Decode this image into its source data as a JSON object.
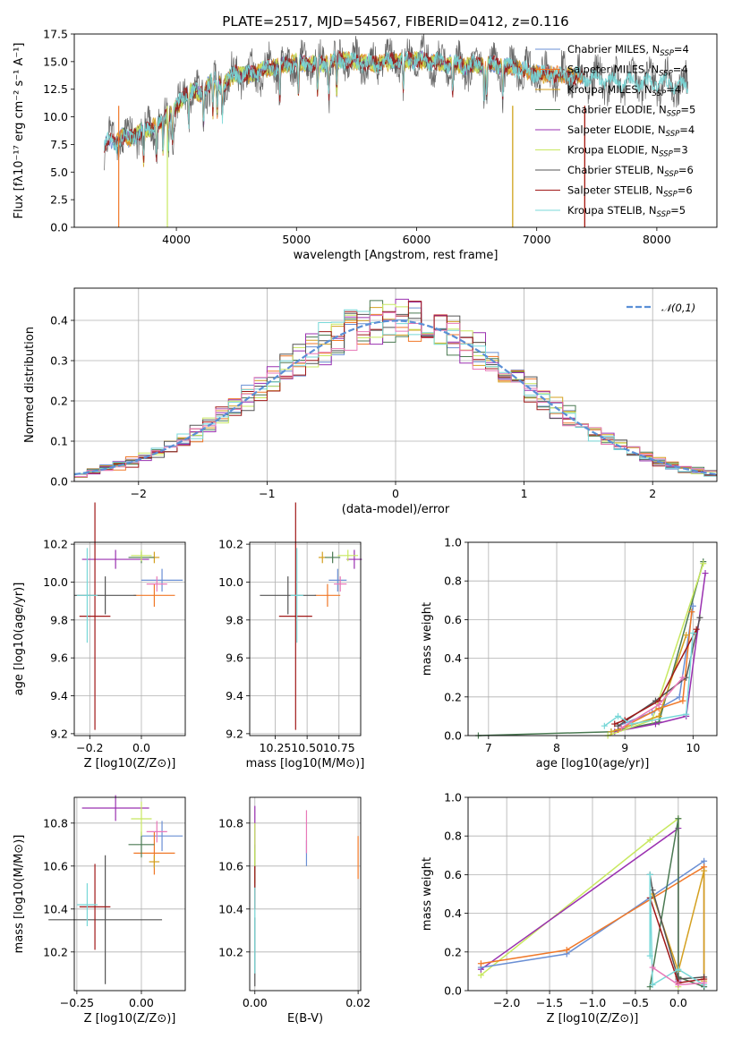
{
  "figure": {
    "title": "PLATE=2517, MJD=54567, FIBERID=0412, z=0.116"
  },
  "colors": {
    "Chabrier MILES": "#6a8fd4",
    "Salpeter MILES": "#f07828",
    "Kroupa MILES": "#d4a020",
    "Chabrier ELODIE": "#4a7a52",
    "Salpeter ELODIE": "#9a30b0",
    "Kroupa ELODIE": "#c8e860",
    "Chabrier STELIB": "#555555",
    "Salpeter STELIB": "#a01818",
    "Kroupa STELIB": "#78d8d8",
    "pink": "#e878b8",
    "gaussian": "#5a8fd6"
  },
  "chart_data": [
    {
      "id": "spectrum",
      "type": "line",
      "title": "PLATE=2517, MJD=54567, FIBERID=0412, z=0.116",
      "xlabel": "wavelength [Angstrom, rest frame]",
      "ylabel": "Flux [fλ10⁻¹⁷ erg cm⁻² s⁻¹ A⁻¹]",
      "xlim": [
        3150,
        8500
      ],
      "ylim": [
        0,
        17.5
      ],
      "xticks": [
        4000,
        5000,
        6000,
        7000,
        8000
      ],
      "yticks": [
        0.0,
        2.5,
        5.0,
        7.5,
        10.0,
        12.5,
        15.0,
        17.5
      ],
      "legend_position": "right",
      "legend": [
        "Chabrier MILES, N_SSP=4",
        "Salpeter MILES, N_SSP=4",
        "Kroupa MILES, N_SSP=4",
        "Chabrier ELODIE, N_SSP=5",
        "Salpeter ELODIE, N_SSP=4",
        "Kroupa ELODIE, N_SSP=3",
        "Chabrier STELIB, N_SSP=6",
        "Salpeter STELIB, N_SSP=6",
        "Kroupa STELIB, N_SSP=5"
      ],
      "legend_parts": [
        {
          "base": "Chabrier MILES, N",
          "sub": "SSP",
          "tail": "=4"
        },
        {
          "base": "Salpeter MILES, N",
          "sub": "SSP",
          "tail": "=4"
        },
        {
          "base": "Kroupa MILES, N",
          "sub": "SSP",
          "tail": "=4"
        },
        {
          "base": "Chabrier ELODIE, N",
          "sub": "SSP",
          "tail": "=5"
        },
        {
          "base": "Salpeter ELODIE, N",
          "sub": "SSP",
          "tail": "=4"
        },
        {
          "base": "Kroupa ELODIE, N",
          "sub": "SSP",
          "tail": "=3"
        },
        {
          "base": "Chabrier STELIB, N",
          "sub": "SSP",
          "tail": "=6"
        },
        {
          "base": "Salpeter STELIB, N",
          "sub": "SSP",
          "tail": "=6"
        },
        {
          "base": "Kroupa STELIB, N",
          "sub": "SSP",
          "tail": "=5"
        }
      ],
      "legend_colors": [
        "#6a8fd4",
        "#f07828",
        "#d4a020",
        "#4a7a52",
        "#9a30b0",
        "#c8e860",
        "#555555",
        "#a01818",
        "#78d8d8"
      ],
      "anchors": {
        "x": [
          3400,
          3450,
          3500,
          3550,
          3600,
          3700,
          3800,
          3900,
          4000,
          4100,
          4200,
          4300,
          4400,
          4500,
          4600,
          4800,
          5000,
          5200,
          5400,
          5600,
          5800,
          6000,
          6200,
          6400,
          6600,
          6800,
          7000,
          7200,
          7400,
          7600,
          7800,
          8000,
          8200,
          8260
        ],
        "y": [
          7.6,
          7.9,
          7.6,
          8.3,
          8.0,
          8.7,
          9.0,
          9.8,
          10.8,
          12.4,
          12.0,
          13.3,
          13.0,
          14.0,
          13.8,
          14.5,
          14.9,
          14.8,
          15.2,
          14.8,
          15.0,
          15.2,
          14.9,
          14.6,
          14.8,
          14.5,
          13.9,
          13.8,
          13.6,
          13.3,
          13.2,
          13.0,
          12.9,
          12.8
        ]
      },
      "absorption_lines": [
        3727,
        3835,
        3889,
        3934,
        3969,
        4102,
        4226,
        4304,
        4340,
        4383,
        4861,
        5015,
        5175,
        5270,
        5335,
        5890,
        6300,
        6563,
        6583,
        6717
      ]
    },
    {
      "id": "residuals",
      "type": "bar",
      "xlabel": "(data-model)/error",
      "ylabel": "Normed distribution",
      "xlim": [
        -2.5,
        2.5
      ],
      "ylim": [
        0,
        0.48
      ],
      "xticks": [
        -2,
        -1,
        0,
        1,
        2
      ],
      "yticks": [
        0.0,
        0.1,
        0.2,
        0.3,
        0.4
      ],
      "legend_position": "top-right",
      "legend": [
        "𝒩(0,1)"
      ],
      "gaussian": {
        "mean": 0,
        "sigma": 1
      },
      "bins": {
        "start": -2.5,
        "width": 0.1,
        "count": 50
      }
    },
    {
      "id": "age_vs_Z",
      "type": "scatter",
      "xlabel": "Z [log10(Z/Z⊙)]",
      "ylabel": "age  [log10(age/yr)]",
      "xlim": [
        -0.26,
        0.17
      ],
      "ylim": [
        9.19,
        10.21
      ],
      "xticks": [
        -0.2,
        0.0
      ],
      "yticks": [
        9.2,
        9.4,
        9.6,
        9.8,
        10.0,
        10.2
      ],
      "points": [
        {
          "model": "Chabrier MILES",
          "x": 0.08,
          "y": 10.01,
          "xerr": 0.08,
          "yerr": 0.06
        },
        {
          "model": "Salpeter MILES",
          "x": 0.05,
          "y": 9.93,
          "xerr": 0.08,
          "yerr": 0.06
        },
        {
          "model": "Kroupa MILES",
          "x": 0.05,
          "y": 10.13,
          "xerr": 0.02,
          "yerr": 0.03
        },
        {
          "model": "Chabrier ELODIE",
          "x": 0.0,
          "y": 10.13,
          "xerr": 0.05,
          "yerr": 0.03
        },
        {
          "model": "Salpeter ELODIE",
          "x": -0.1,
          "y": 10.12,
          "xerr": 0.13,
          "yerr": 0.05
        },
        {
          "model": "Kroupa ELODIE",
          "x": 0.0,
          "y": 10.14,
          "xerr": 0.04,
          "yerr": 0.03
        },
        {
          "model": "Chabrier STELIB",
          "x": -0.14,
          "y": 9.93,
          "xerr": 0.12,
          "yerr": 0.1
        },
        {
          "model": "Salpeter STELIB",
          "x": -0.18,
          "y": 9.82,
          "xerr": 0.06,
          "yerr": 0.6
        },
        {
          "model": "Kroupa STELIB",
          "x": -0.21,
          "y": 9.93,
          "xerr": 0.04,
          "yerr": 0.25
        },
        {
          "model": "pink",
          "x": 0.06,
          "y": 9.99,
          "xerr": 0.04,
          "yerr": 0.04
        }
      ]
    },
    {
      "id": "age_vs_mass",
      "type": "scatter",
      "xlabel": "mass [log10(M/M⊙)]",
      "ylabel": "",
      "xlim": [
        10.05,
        10.92
      ],
      "ylim": [
        9.19,
        10.21
      ],
      "xticks": [
        10.25,
        10.5,
        10.75
      ],
      "yticks": [
        9.2,
        9.4,
        9.6,
        9.8,
        10.0,
        10.2
      ],
      "points": [
        {
          "model": "Chabrier MILES",
          "x": 10.74,
          "y": 10.01,
          "xerr": 0.07,
          "yerr": 0.06
        },
        {
          "model": "Salpeter MILES",
          "x": 10.66,
          "y": 9.93,
          "xerr": 0.1,
          "yerr": 0.06
        },
        {
          "model": "Kroupa MILES",
          "x": 10.62,
          "y": 10.13,
          "xerr": 0.03,
          "yerr": 0.03
        },
        {
          "model": "Chabrier ELODIE",
          "x": 10.7,
          "y": 10.13,
          "xerr": 0.06,
          "yerr": 0.03
        },
        {
          "model": "Salpeter ELODIE",
          "x": 10.87,
          "y": 10.12,
          "xerr": 0.06,
          "yerr": 0.05
        },
        {
          "model": "Kroupa ELODIE",
          "x": 10.82,
          "y": 10.14,
          "xerr": 0.08,
          "yerr": 0.03
        },
        {
          "model": "Chabrier STELIB",
          "x": 10.35,
          "y": 9.93,
          "xerr": 0.22,
          "yerr": 0.1
        },
        {
          "model": "Salpeter STELIB",
          "x": 10.41,
          "y": 9.82,
          "xerr": 0.13,
          "yerr": 0.6
        },
        {
          "model": "Kroupa STELIB",
          "x": 10.42,
          "y": 9.93,
          "xerr": 0.05,
          "yerr": 0.25
        },
        {
          "model": "pink",
          "x": 10.76,
          "y": 9.99,
          "xerr": 0.05,
          "yerr": 0.04
        }
      ]
    },
    {
      "id": "mass_weight_vs_age",
      "type": "line",
      "xlabel": "age  [log10(age/yr)]",
      "ylabel": "mass weight",
      "xlim": [
        6.7,
        10.35
      ],
      "ylim": [
        0,
        1.0
      ],
      "xticks": [
        7,
        8,
        9,
        10
      ],
      "yticks": [
        0.0,
        0.2,
        0.4,
        0.6,
        0.8,
        1.0
      ],
      "series": [
        {
          "model": "Chabrier ELODIE",
          "x": [
            6.85,
            8.8,
            9.5,
            10.15
          ],
          "y": [
            0.0,
            0.02,
            0.07,
            0.9
          ]
        },
        {
          "model": "Salpeter ELODIE",
          "x": [
            8.85,
            9.45,
            9.9,
            10.18
          ],
          "y": [
            0.02,
            0.06,
            0.1,
            0.84
          ]
        },
        {
          "model": "Kroupa ELODIE",
          "x": [
            8.75,
            9.4,
            10.15
          ],
          "y": [
            0.0,
            0.08,
            0.89
          ]
        },
        {
          "model": "Chabrier MILES",
          "x": [
            8.9,
            9.4,
            9.8,
            10.0
          ],
          "y": [
            0.05,
            0.12,
            0.2,
            0.67
          ]
        },
        {
          "model": "Salpeter MILES",
          "x": [
            8.9,
            9.5,
            9.85,
            9.98
          ],
          "y": [
            0.03,
            0.14,
            0.18,
            0.64
          ]
        },
        {
          "model": "Kroupa MILES",
          "x": [
            8.8,
            9.5,
            9.9
          ],
          "y": [
            0.02,
            0.1,
            0.52
          ]
        },
        {
          "model": "Chabrier STELIB",
          "x": [
            8.9,
            9.45,
            9.9,
            10.1
          ],
          "y": [
            0.05,
            0.18,
            0.3,
            0.61
          ]
        },
        {
          "model": "Salpeter STELIB",
          "x": [
            8.85,
            9.0,
            9.5,
            10.05
          ],
          "y": [
            0.06,
            0.08,
            0.18,
            0.55
          ]
        },
        {
          "model": "Kroupa STELIB",
          "x": [
            8.7,
            8.9,
            9.1,
            9.9,
            10.0
          ],
          "y": [
            0.05,
            0.1,
            0.06,
            0.11,
            0.53
          ]
        },
        {
          "model": "pink",
          "x": [
            8.95,
            9.5,
            9.85
          ],
          "y": [
            0.04,
            0.16,
            0.3
          ]
        }
      ]
    },
    {
      "id": "mass_vs_Z",
      "type": "scatter",
      "xlabel": "Z [log10(Z/Z⊙)]",
      "ylabel": "mass [log10(M/M⊙)]",
      "xlim": [
        -0.26,
        0.17
      ],
      "ylim": [
        10.02,
        10.92
      ],
      "xticks": [
        -0.25,
        0.0
      ],
      "yticks": [
        10.2,
        10.4,
        10.6,
        10.8
      ],
      "points": [
        {
          "model": "Chabrier MILES",
          "x": 0.08,
          "y": 10.74,
          "xerr": 0.08,
          "yerr": 0.07
        },
        {
          "model": "Salpeter MILES",
          "x": 0.05,
          "y": 10.66,
          "xerr": 0.08,
          "yerr": 0.1
        },
        {
          "model": "Kroupa MILES",
          "x": 0.05,
          "y": 10.62,
          "xerr": 0.02,
          "yerr": 0.03
        },
        {
          "model": "Chabrier ELODIE",
          "x": 0.0,
          "y": 10.7,
          "xerr": 0.05,
          "yerr": 0.06
        },
        {
          "model": "Salpeter ELODIE",
          "x": -0.1,
          "y": 10.87,
          "xerr": 0.13,
          "yerr": 0.06
        },
        {
          "model": "Kroupa ELODIE",
          "x": 0.0,
          "y": 10.82,
          "xerr": 0.04,
          "yerr": 0.08
        },
        {
          "model": "Chabrier STELIB",
          "x": -0.14,
          "y": 10.35,
          "xerr": 0.22,
          "yerr": 0.3
        },
        {
          "model": "Salpeter STELIB",
          "x": -0.18,
          "y": 10.41,
          "xerr": 0.06,
          "yerr": 0.2
        },
        {
          "model": "Kroupa STELIB",
          "x": -0.21,
          "y": 10.42,
          "xerr": 0.04,
          "yerr": 0.1
        },
        {
          "model": "pink",
          "x": 0.06,
          "y": 10.76,
          "xerr": 0.04,
          "yerr": 0.05
        }
      ]
    },
    {
      "id": "mass_vs_EBV",
      "type": "scatter",
      "xlabel": "E(B-V)",
      "ylabel": "",
      "xlim": [
        -0.001,
        0.0205
      ],
      "ylim": [
        10.02,
        10.92
      ],
      "xticks": [
        0.0,
        0.02
      ],
      "yticks": [
        10.2,
        10.4,
        10.6,
        10.8
      ],
      "points": [
        {
          "model": "Chabrier MILES",
          "x": 0.01,
          "y": 10.66,
          "xerr": 0,
          "yerr": 0.06
        },
        {
          "model": "Salpeter MILES",
          "x": 0.02,
          "y": 10.64,
          "xerr": 0,
          "yerr": 0.1
        },
        {
          "model": "Kroupa MILES",
          "x": 0.0,
          "y": 10.6,
          "xerr": 0,
          "yerr": 0.08
        },
        {
          "model": "Chabrier ELODIE",
          "x": 0.0,
          "y": 10.6,
          "xerr": 0,
          "yerr": 0.1
        },
        {
          "model": "Salpeter ELODIE",
          "x": 0.0,
          "y": 10.78,
          "xerr": 0,
          "yerr": 0.1
        },
        {
          "model": "Kroupa ELODIE",
          "x": 0.0,
          "y": 10.7,
          "xerr": 0,
          "yerr": 0.1
        },
        {
          "model": "Chabrier STELIB",
          "x": 0.0,
          "y": 10.2,
          "xerr": 0,
          "yerr": 0.16
        },
        {
          "model": "Salpeter STELIB",
          "x": 0.0,
          "y": 10.5,
          "xerr": 0,
          "yerr": 0.1
        },
        {
          "model": "Kroupa STELIB",
          "x": 0.0,
          "y": 10.3,
          "xerr": 0,
          "yerr": 0.2
        },
        {
          "model": "pink",
          "x": 0.01,
          "y": 10.76,
          "xerr": 0,
          "yerr": 0.1
        }
      ]
    },
    {
      "id": "mass_weight_vs_Z",
      "type": "line",
      "xlabel": "Z [log10(Z/Z⊙)]",
      "ylabel": "mass weight",
      "xlim": [
        -2.45,
        0.45
      ],
      "ylim": [
        0,
        1.0
      ],
      "xticks": [
        -2.0,
        -1.5,
        -1.0,
        -0.5,
        0.0
      ],
      "yticks": [
        0.0,
        0.2,
        0.4,
        0.6,
        0.8,
        1.0
      ],
      "series": [
        {
          "model": "Kroupa ELODIE",
          "x": [
            -2.3,
            -0.33,
            0.0,
            0.0
          ],
          "y": [
            0.08,
            0.78,
            0.89,
            0.02
          ]
        },
        {
          "model": "Salpeter ELODIE",
          "x": [
            -2.3,
            0.0,
            0.0
          ],
          "y": [
            0.11,
            0.84,
            0.05
          ]
        },
        {
          "model": "Chabrier MILES",
          "x": [
            -2.3,
            -1.3,
            0.3,
            0.3
          ],
          "y": [
            0.12,
            0.19,
            0.67,
            0.02
          ]
        },
        {
          "model": "Salpeter MILES",
          "x": [
            -2.3,
            -1.3,
            0.3,
            0.3
          ],
          "y": [
            0.14,
            0.21,
            0.64,
            0.06
          ]
        },
        {
          "model": "Kroupa MILES",
          "x": [
            -0.3,
            0.0,
            0.3,
            0.3
          ],
          "y": [
            0.5,
            0.1,
            0.62,
            0.05
          ]
        },
        {
          "model": "Chabrier ELODIE",
          "x": [
            -0.33,
            0.0,
            0.0,
            0.3
          ],
          "y": [
            0.02,
            0.89,
            0.07,
            0.02
          ]
        },
        {
          "model": "Chabrier STELIB",
          "x": [
            -0.33,
            -0.3,
            0.0,
            0.3
          ],
          "y": [
            0.6,
            0.52,
            0.06,
            0.07
          ]
        },
        {
          "model": "Salpeter STELIB",
          "x": [
            -0.33,
            0.0,
            0.3
          ],
          "y": [
            0.48,
            0.04,
            0.06
          ]
        },
        {
          "model": "Kroupa STELIB",
          "x": [
            -0.33,
            -0.33,
            -0.3,
            0.0,
            0.3
          ],
          "y": [
            0.18,
            0.6,
            0.03,
            0.11,
            0.03
          ]
        },
        {
          "model": "pink",
          "x": [
            -0.3,
            0.0,
            0.3
          ],
          "y": [
            0.12,
            0.03,
            0.04
          ]
        }
      ]
    }
  ]
}
